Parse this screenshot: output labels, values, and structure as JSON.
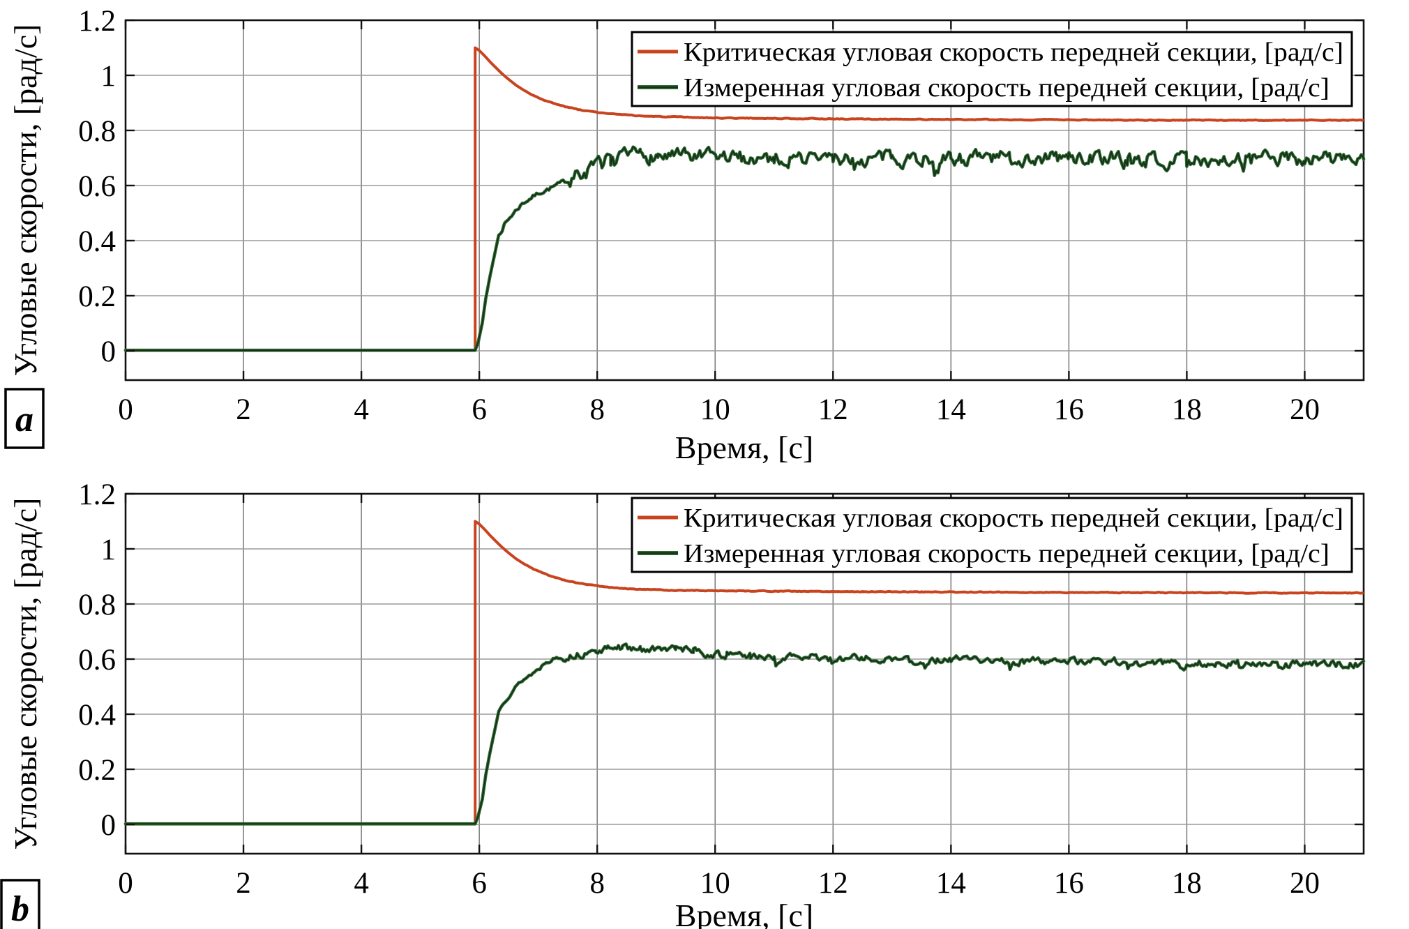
{
  "figure": {
    "background": "#ffffff",
    "description": "Two stacked MATLAB-style line plots (panels a and b) of angular velocities vs time"
  },
  "colors": {
    "critical_line": "#c8441f",
    "measured_halo": "#2e6b30",
    "measured_core": "#16301a",
    "grid_vertical": "#787878",
    "grid_horizontal": "#9a9a9a",
    "axis": "#111111",
    "text": "#000000",
    "legend_background": "#ffffff",
    "legend_border": "#000000"
  },
  "chart_data": [
    {
      "id": "a",
      "type": "line",
      "panel_label": "a",
      "title": "",
      "xlabel": "Время, [с]",
      "ylabel": "Угловые скорости, [рад/с]",
      "xlim": [
        0,
        21
      ],
      "ylim": [
        -0.1,
        1.2
      ],
      "xticks": [
        0,
        2,
        4,
        6,
        8,
        10,
        12,
        14,
        16,
        18,
        20
      ],
      "xtick_labels": [
        "0",
        "2",
        "4",
        "6",
        "8",
        "10",
        "12",
        "14",
        "16",
        "18",
        "20"
      ],
      "yticks": [
        0,
        0.2,
        0.4,
        0.6,
        0.8,
        1.0,
        1.2
      ],
      "ytick_labels": [
        "0",
        "0.2",
        "0.4",
        "0.6",
        "0.8",
        "1",
        "1.2"
      ],
      "grid": true,
      "legend_position": "top-right",
      "series": [
        {
          "name": "Критическая угловая скорость передней секции, [рад/с]",
          "color": "#c8441f",
          "keypoints": [
            [
              0,
              0.001
            ],
            [
              5.93,
              0.001
            ],
            [
              5.93,
              1.1
            ],
            [
              6.0,
              1.09
            ],
            [
              6.08,
              1.073
            ],
            [
              6.17,
              1.052
            ],
            [
              6.27,
              1.03
            ],
            [
              6.38,
              1.007
            ],
            [
              6.5,
              0.985
            ],
            [
              6.63,
              0.963
            ],
            [
              6.77,
              0.944
            ],
            [
              6.92,
              0.927
            ],
            [
              7.08,
              0.912
            ],
            [
              7.26,
              0.898
            ],
            [
              7.46,
              0.886
            ],
            [
              7.68,
              0.876
            ],
            [
              7.92,
              0.868
            ],
            [
              8.18,
              0.861
            ],
            [
              8.47,
              0.856
            ],
            [
              8.8,
              0.852
            ],
            [
              9.2,
              0.849
            ],
            [
              9.65,
              0.847
            ],
            [
              10.15,
              0.845
            ],
            [
              10.8,
              0.844
            ],
            [
              11.6,
              0.843
            ],
            [
              12.5,
              0.841
            ],
            [
              13.5,
              0.84
            ],
            [
              14.5,
              0.839
            ],
            [
              15.5,
              0.839
            ],
            [
              16.5,
              0.838
            ],
            [
              17.5,
              0.838
            ],
            [
              18.5,
              0.837
            ],
            [
              19.5,
              0.837
            ],
            [
              21,
              0.837
            ]
          ],
          "noise": {
            "seed": 3,
            "start": 6.8,
            "amp": 0.0012,
            "dip_prob": 0,
            "dip_mag": 0
          }
        },
        {
          "name": "Измеренная угловая скорость передней секции, [рад/с]",
          "color": "#2e6b30",
          "core_color": "#16301a",
          "keypoints": [
            [
              0,
              0.002
            ],
            [
              5.93,
              0.002
            ],
            [
              5.98,
              0.03
            ],
            [
              6.05,
              0.1
            ],
            [
              6.11,
              0.19
            ],
            [
              6.18,
              0.27
            ],
            [
              6.25,
              0.34
            ],
            [
              6.33,
              0.42
            ],
            [
              6.43,
              0.46
            ],
            [
              6.58,
              0.5
            ],
            [
              6.73,
              0.535
            ],
            [
              6.88,
              0.556
            ],
            [
              7.03,
              0.575
            ],
            [
              7.18,
              0.588
            ],
            [
              7.33,
              0.602
            ],
            [
              7.48,
              0.617
            ],
            [
              7.63,
              0.633
            ],
            [
              7.78,
              0.647
            ],
            [
              7.93,
              0.66
            ],
            [
              8.08,
              0.678
            ],
            [
              8.23,
              0.697
            ],
            [
              8.43,
              0.71
            ],
            [
              8.73,
              0.712
            ],
            [
              9.03,
              0.707
            ],
            [
              9.5,
              0.703
            ],
            [
              10,
              0.701
            ],
            [
              11,
              0.7
            ],
            [
              12,
              0.699
            ],
            [
              13,
              0.701
            ],
            [
              14,
              0.7
            ],
            [
              15,
              0.699
            ],
            [
              16,
              0.701
            ],
            [
              17,
              0.699
            ],
            [
              18,
              0.7
            ],
            [
              19,
              0.698
            ],
            [
              20,
              0.699
            ],
            [
              21,
              0.701
            ]
          ],
          "noise": {
            "seed": 7,
            "start": 7.5,
            "rise_from": 6.35,
            "amp_rise": 0.007,
            "amp": 0.023,
            "dip_prob": 0.022,
            "dip_mag": 0.05
          }
        }
      ]
    },
    {
      "id": "b",
      "type": "line",
      "panel_label": "b",
      "title": "",
      "xlabel": "Время, [с]",
      "ylabel": "Угловые скорости, [рад/с]",
      "xlim": [
        0,
        21
      ],
      "ylim": [
        -0.1,
        1.2
      ],
      "xticks": [
        0,
        2,
        4,
        6,
        8,
        10,
        12,
        14,
        16,
        18,
        20
      ],
      "xtick_labels": [
        "0",
        "2",
        "4",
        "6",
        "8",
        "10",
        "12",
        "14",
        "16",
        "18",
        "20"
      ],
      "yticks": [
        0,
        0.2,
        0.4,
        0.6,
        0.8,
        1.0,
        1.2
      ],
      "ytick_labels": [
        "0",
        "0.2",
        "0.4",
        "0.6",
        "0.8",
        "1",
        "1.2"
      ],
      "grid": true,
      "legend_position": "top-right",
      "series": [
        {
          "name": "Критическая угловая скорость передней секции, [рад/с]",
          "color": "#c8441f",
          "keypoints": [
            [
              0,
              0.001
            ],
            [
              5.93,
              0.001
            ],
            [
              5.93,
              1.1
            ],
            [
              6.0,
              1.09
            ],
            [
              6.08,
              1.073
            ],
            [
              6.17,
              1.052
            ],
            [
              6.27,
              1.03
            ],
            [
              6.38,
              1.007
            ],
            [
              6.5,
              0.985
            ],
            [
              6.63,
              0.963
            ],
            [
              6.77,
              0.944
            ],
            [
              6.92,
              0.927
            ],
            [
              7.08,
              0.912
            ],
            [
              7.26,
              0.898
            ],
            [
              7.46,
              0.886
            ],
            [
              7.68,
              0.876
            ],
            [
              7.92,
              0.868
            ],
            [
              8.18,
              0.861
            ],
            [
              8.47,
              0.856
            ],
            [
              8.8,
              0.853
            ],
            [
              9.2,
              0.85
            ],
            [
              9.65,
              0.849
            ],
            [
              10.15,
              0.848
            ],
            [
              10.8,
              0.847
            ],
            [
              11.6,
              0.846
            ],
            [
              12.5,
              0.845
            ],
            [
              13.5,
              0.844
            ],
            [
              14.5,
              0.843
            ],
            [
              15.5,
              0.842
            ],
            [
              16.5,
              0.842
            ],
            [
              17.5,
              0.841
            ],
            [
              18.5,
              0.841
            ],
            [
              19.5,
              0.84
            ],
            [
              21,
              0.84
            ]
          ],
          "noise": {
            "seed": 5,
            "start": 6.8,
            "amp": 0.0012,
            "dip_prob": 0,
            "dip_mag": 0
          }
        },
        {
          "name": "Измеренная угловая скорость передней секции, [рад/с]",
          "color": "#2e6b30",
          "core_color": "#16301a",
          "keypoints": [
            [
              0,
              0.002
            ],
            [
              5.93,
              0.002
            ],
            [
              5.98,
              0.03
            ],
            [
              6.05,
              0.09
            ],
            [
              6.11,
              0.18
            ],
            [
              6.18,
              0.26
            ],
            [
              6.25,
              0.33
            ],
            [
              6.33,
              0.41
            ],
            [
              6.43,
              0.45
            ],
            [
              6.58,
              0.49
            ],
            [
              6.73,
              0.523
            ],
            [
              6.88,
              0.545
            ],
            [
              7.03,
              0.568
            ],
            [
              7.13,
              0.592
            ],
            [
              7.28,
              0.603
            ],
            [
              7.48,
              0.608
            ],
            [
              7.73,
              0.617
            ],
            [
              7.98,
              0.628
            ],
            [
              8.18,
              0.638
            ],
            [
              8.43,
              0.642
            ],
            [
              8.73,
              0.636
            ],
            [
              9.03,
              0.634
            ],
            [
              9.33,
              0.639
            ],
            [
              9.63,
              0.63
            ],
            [
              9.93,
              0.618
            ],
            [
              10.2,
              0.613
            ],
            [
              10.6,
              0.612
            ],
            [
              11,
              0.61
            ],
            [
              11.5,
              0.608
            ],
            [
              12,
              0.606
            ],
            [
              12.5,
              0.604
            ],
            [
              13,
              0.602
            ],
            [
              13.5,
              0.6
            ],
            [
              14,
              0.599
            ],
            [
              14.5,
              0.597
            ],
            [
              15,
              0.596
            ],
            [
              15.5,
              0.594
            ],
            [
              16,
              0.593
            ],
            [
              16.5,
              0.591
            ],
            [
              17,
              0.59
            ],
            [
              17.5,
              0.589
            ],
            [
              18,
              0.588
            ],
            [
              18.5,
              0.586
            ],
            [
              19,
              0.585
            ],
            [
              19.5,
              0.584
            ],
            [
              20,
              0.583
            ],
            [
              20.5,
              0.582
            ],
            [
              21,
              0.582
            ]
          ],
          "noise": {
            "seed": 13,
            "start": 7.4,
            "rise_from": 6.35,
            "amp_rise": 0.006,
            "amp": 0.011,
            "dip_prob": 0.02,
            "dip_mag": 0.032
          }
        }
      ]
    }
  ]
}
